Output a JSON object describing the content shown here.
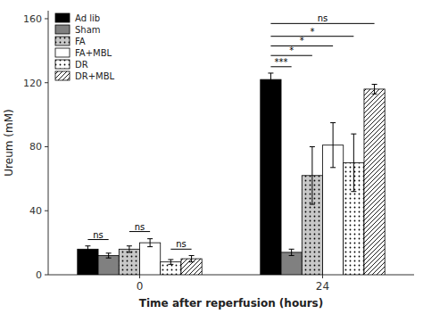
{
  "chart_data": {
    "type": "bar",
    "categories": [
      "0",
      "24"
    ],
    "series": [
      {
        "name": "Ad lib",
        "color": "#000000",
        "values": [
          16,
          122
        ],
        "errors": [
          2,
          4
        ]
      },
      {
        "name": "Sham",
        "color": "#808080",
        "values": [
          12,
          14
        ],
        "errors": [
          1.5,
          2
        ]
      },
      {
        "name": "FA",
        "color": "#c8c8c8",
        "values": [
          16,
          62
        ],
        "errors": [
          2,
          18
        ]
      },
      {
        "name": "FA+MBL",
        "color": "#ffffff",
        "values": [
          20,
          81
        ],
        "errors": [
          2.5,
          14
        ]
      },
      {
        "name": "DR",
        "color": "#ffffff",
        "values": [
          8,
          70
        ],
        "errors": [
          1.5,
          18
        ]
      },
      {
        "name": "DR+MBL",
        "color": "#ffffff",
        "values": [
          10,
          116
        ],
        "errors": [
          2,
          3
        ]
      }
    ],
    "xlabel": "Time after reperfusion (hours)",
    "ylabel": "Ureum (mM)",
    "ylim": [
      0,
      165
    ],
    "yticks": [
      0,
      40,
      80,
      120,
      160
    ],
    "grid": false,
    "legend": "upper left",
    "annotations": [
      {
        "text": "ns",
        "category": 0,
        "from": 0,
        "to": 1,
        "y": 22
      },
      {
        "text": "ns",
        "category": 0,
        "from": 2,
        "to": 3,
        "y": 27
      },
      {
        "text": "ns",
        "category": 0,
        "from": 4,
        "to": 5,
        "y": 16
      },
      {
        "text": "***",
        "category": 1,
        "from": 0,
        "to": 1,
        "y": 130
      },
      {
        "text": "*",
        "category": 1,
        "from": 0,
        "to": 2,
        "y": 137
      },
      {
        "text": "*",
        "category": 1,
        "from": 0,
        "to": 3,
        "y": 143
      },
      {
        "text": "*",
        "category": 1,
        "from": 0,
        "to": 4,
        "y": 149
      },
      {
        "text": "ns",
        "category": 1,
        "from": 0,
        "to": 5,
        "y": 157
      }
    ]
  }
}
